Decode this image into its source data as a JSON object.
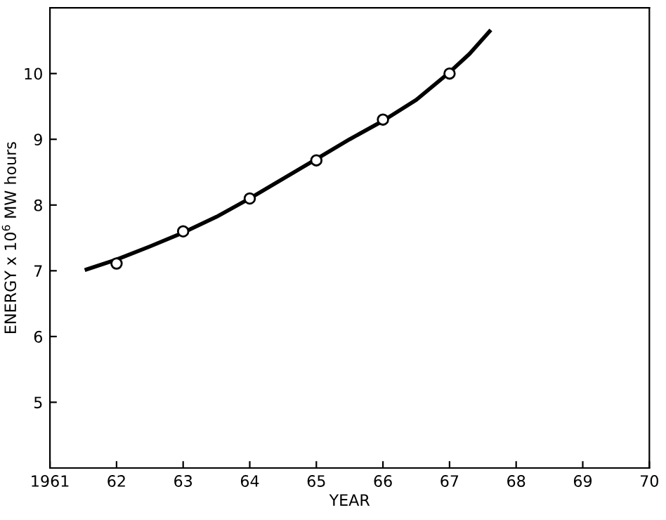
{
  "chart_data": {
    "type": "line",
    "xlabel": "YEAR",
    "ylabel": "ENERGY x 10$^{6}$ MW hours",
    "xlim": [
      1961,
      1970
    ],
    "ylim": [
      4,
      11
    ],
    "xticks": [
      1961,
      {
        "value": 1962,
        "label": "62"
      },
      {
        "value": 1963,
        "label": "63"
      },
      {
        "value": 1964,
        "label": "64"
      },
      {
        "value": 1965,
        "label": "65"
      },
      {
        "value": 1966,
        "label": "66"
      },
      {
        "value": 1967,
        "label": "67"
      },
      {
        "value": 1968,
        "label": "68"
      },
      {
        "value": 1969,
        "label": "69"
      },
      {
        "value": 1970,
        "label": "70"
      }
    ],
    "yticks": [
      5,
      6,
      7,
      8,
      9,
      10
    ],
    "grid": false,
    "legend": false,
    "series": [
      {
        "color": "#000000",
        "marker": "none",
        "line_style": "solid",
        "x": [
          1961.55,
          1962,
          1962.5,
          1963,
          1963.5,
          1964,
          1964.5,
          1965,
          1965.5,
          1966,
          1966.5,
          1967,
          1967.3,
          1967.6
        ],
        "values": [
          7.02,
          7.17,
          7.37,
          7.58,
          7.82,
          8.1,
          8.4,
          8.7,
          9.0,
          9.28,
          9.6,
          10.02,
          10.3,
          10.64
        ]
      },
      {
        "type": "scatter",
        "color": "#000000",
        "marker": "circle",
        "x": [
          1962,
          1963,
          1964,
          1965,
          1966,
          1967
        ],
        "values": [
          7.11,
          7.6,
          8.1,
          8.68,
          9.3,
          10.0
        ]
      }
    ]
  }
}
